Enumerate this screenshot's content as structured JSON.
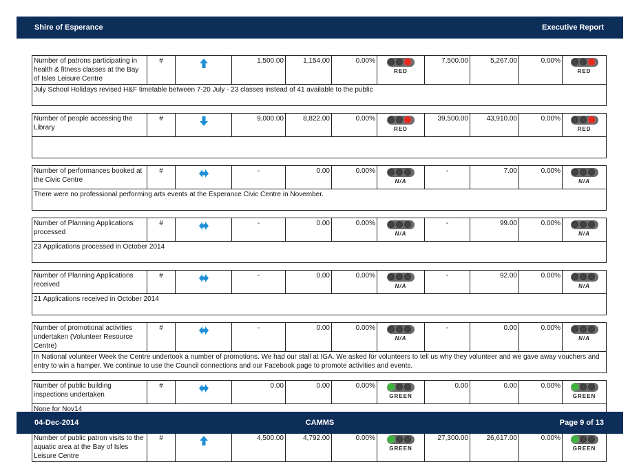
{
  "header": {
    "org": "Shire of Esperance",
    "report": "Executive Report"
  },
  "footer": {
    "date": "04-Dec-2014",
    "app": "CAMMS",
    "page": "Page 9 of 13"
  },
  "rows": [
    {
      "measure": "Number of patrons participating in health & fitness classes at the Bay of Isles Leisure Centre",
      "unit": "#",
      "trend": "up",
      "target": "1,500.00",
      "actual": "1,154.00",
      "variance": "0.00%",
      "status": "RED",
      "ytd_target": "7,500.00",
      "ytd_actual": "5,267.00",
      "ytd_variance": "0.00%",
      "ytd_status": "RED",
      "comment": "July School Holidays revised H&F timetable between 7-20 July - 23 classes instead of 41 available to the public"
    },
    {
      "measure": "Number of people accessing the Library",
      "unit": "#",
      "trend": "down",
      "target": "9,000.00",
      "actual": "8,822.00",
      "variance": "0.00%",
      "status": "RED",
      "ytd_target": "39,500.00",
      "ytd_actual": "43,910.00",
      "ytd_variance": "0.00%",
      "ytd_status": "RED",
      "comment": ""
    },
    {
      "measure": "Number of performances booked at the Civic Centre",
      "unit": "#",
      "trend": "flat",
      "target": "-",
      "actual": "0.00",
      "variance": "0.00%",
      "status": "N/A",
      "ytd_target": "-",
      "ytd_actual": "7.00",
      "ytd_variance": "0.00%",
      "ytd_status": "N/A",
      "comment": "There were no professional performing arts events at the Esperance Civic Centre in November."
    },
    {
      "measure": "Number of Planning Applications processed",
      "unit": "#",
      "trend": "flat",
      "target": "-",
      "actual": "0.00",
      "variance": "0.00%",
      "status": "N/A",
      "ytd_target": "-",
      "ytd_actual": "99.00",
      "ytd_variance": "0.00%",
      "ytd_status": "N/A",
      "comment": "23 Applications processed in October 2014"
    },
    {
      "measure": "Number of Planning Applications received",
      "unit": "#",
      "trend": "flat",
      "target": "-",
      "actual": "0.00",
      "variance": "0.00%",
      "status": "N/A",
      "ytd_target": "-",
      "ytd_actual": "92.00",
      "ytd_variance": "0.00%",
      "ytd_status": "N/A",
      "comment": "21 Applications received in October 2014"
    },
    {
      "measure": "Number of promotional activities undertaken (Volunteer Resource Centre)",
      "unit": "#",
      "trend": "flat",
      "target": "-",
      "actual": "0.00",
      "variance": "0.00%",
      "status": "N/A",
      "ytd_target": "-",
      "ytd_actual": "0.00",
      "ytd_variance": "0.00%",
      "ytd_status": "N/A",
      "comment": "In National volunteer Week the Centre undertook a number of promotions.  We had our stall at IGA.  We asked for volunteers to tell us why they volunteer and we gave away vouchers and entry to win a hamper.  We continue to use the Council connections and our Facebook page to promote activities and events."
    },
    {
      "measure": "Number of public building inspections undertaken",
      "unit": "#",
      "trend": "flat",
      "target": "0.00",
      "actual": "0.00",
      "variance": "0.00%",
      "status": "GREEN",
      "ytd_target": "0.00",
      "ytd_actual": "0.00",
      "ytd_variance": "0.00%",
      "ytd_status": "GREEN",
      "comment": "None for Nov14"
    },
    {
      "measure": "Number of public patron visits to the aquatic area at the Bay of Isles Leisure Centre",
      "unit": "#",
      "trend": "up",
      "target": "4,500.00",
      "actual": "4,792.00",
      "variance": "0.00%",
      "status": "GREEN",
      "ytd_target": "27,300.00",
      "ytd_actual": "26,617.00",
      "ytd_variance": "0.00%",
      "ytd_status": "GREEN",
      "comment": null
    }
  ],
  "colors": {
    "bar": "#0e2e5a",
    "red_light": "#e8281f",
    "green_light": "#3cb43c",
    "arrow": "#1e8fd6"
  }
}
